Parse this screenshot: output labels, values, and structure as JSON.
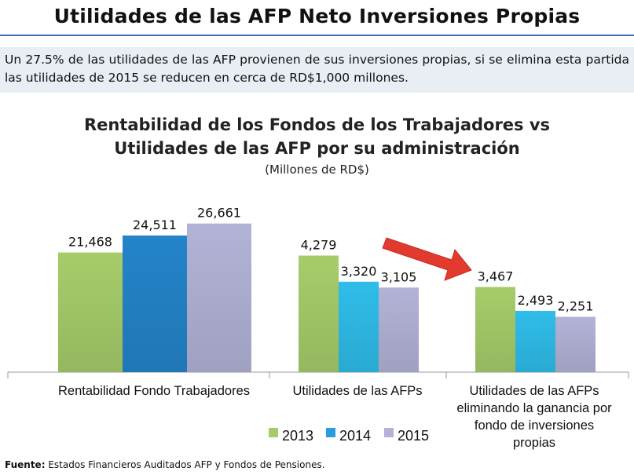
{
  "header": {
    "title": "Utilidades de las AFP Neto Inversiones Propias"
  },
  "intro": {
    "text": "Un 27.5% de las utilidades de las AFP provienen de sus inversiones propias, si se elimina esta partida las utilidades de 2015 se reducen en cerca de RD$1,000 millones."
  },
  "chart_data": {
    "type": "bar",
    "title": "Rentabilidad de los Fondos de los Trabajadores  vs Utilidades de las AFP por su administración",
    "title_lines": [
      "Rentabilidad de los Fondos de los Trabajadores  vs",
      "Utilidades de las AFP por su administración"
    ],
    "subtitle": "(Millones de RD$)",
    "xlabel": "",
    "ylabel": "",
    "grid": false,
    "legend_position": "bottom",
    "categories": [
      "Rentabilidad Fondo Trabajadores",
      "Utilidades de las AFPs",
      "Utilidades de las AFPs eliminando la ganancia por fondo de inversiones propias"
    ],
    "category_lines": [
      [
        "Rentabilidad Fondo Trabajadores"
      ],
      [
        "Utilidades de las AFPs"
      ],
      [
        "Utilidades de las AFPs",
        "eliminando la ganancia por",
        "fondo de inversiones",
        "propias"
      ]
    ],
    "series": [
      {
        "name": "2013",
        "color": "#a6cc6a",
        "values": [
          21468,
          4279,
          3467
        ],
        "labels": [
          "21,468",
          "4,279",
          "3,467"
        ]
      },
      {
        "name": "2014",
        "color": "#2a9ddf",
        "values": [
          24511,
          3320,
          2493
        ],
        "labels": [
          "24,511",
          "3,320",
          "2,493"
        ]
      },
      {
        "name": "2015",
        "color": "#b2b3d6",
        "values": [
          26661,
          3105,
          2251
        ],
        "labels": [
          "26,661",
          "3,105",
          "2,251"
        ]
      }
    ],
    "group_colors": [
      [
        "#a6cc6a",
        "#2484c9",
        "#b2b3d6"
      ],
      [
        "#a6cc6a",
        "#2fbde9",
        "#b2b3d6"
      ],
      [
        "#a6cc6a",
        "#2fbde9",
        "#b2b3d6"
      ]
    ],
    "annotation": "red-arrow"
  },
  "footer": {
    "source_label": "Fuente:",
    "source_text": " Estados Financieros Auditados AFP  y Fondos de Pensiones."
  }
}
